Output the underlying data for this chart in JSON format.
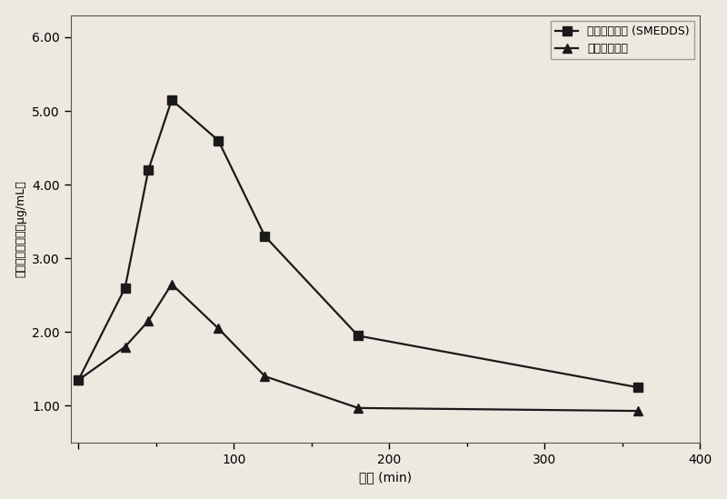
{
  "series1_x": [
    0,
    30,
    45,
    60,
    90,
    120,
    180,
    360
  ],
  "series1_y": [
    1.35,
    2.6,
    4.2,
    5.15,
    4.6,
    3.3,
    1.95,
    1.25
  ],
  "series2_x": [
    0,
    30,
    45,
    60,
    90,
    120,
    180,
    360
  ],
  "series2_y": [
    1.35,
    1.8,
    2.15,
    2.65,
    2.05,
    1.4,
    0.97,
    0.93
  ],
  "series1_label": "药根素自微乳 (SMEDDS)",
  "series2_label": "药根素拟盐液",
  "xlabel": "时间 (min)",
  "ylabel": "药根素血药浓度（μg/mL）",
  "xlim": [
    -5,
    390
  ],
  "ylim": [
    0.5,
    6.3
  ],
  "yticks": [
    1.0,
    2.0,
    3.0,
    4.0,
    5.0,
    6.0
  ],
  "ytick_labels": [
    "1.00",
    "2.00",
    "3.00",
    "4.00",
    "5.00",
    "6.00"
  ],
  "xticks": [
    0,
    100,
    200,
    300,
    400
  ],
  "xtick_labels": [
    "",
    "100",
    "200",
    "300",
    "400"
  ],
  "line_color": "#1a1a1a",
  "marker1": "s",
  "marker2": "^",
  "markersize": 7,
  "linewidth": 1.6,
  "legend_loc": "upper right",
  "background_color": "#ede8e0"
}
